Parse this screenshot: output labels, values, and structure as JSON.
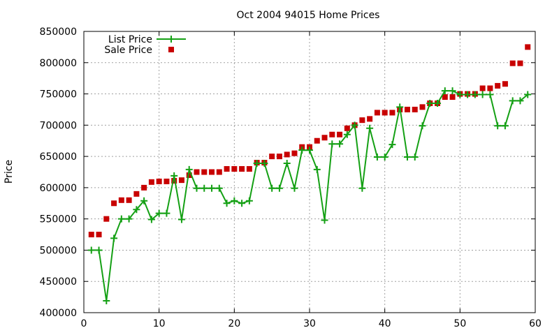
{
  "chart_data": {
    "type": "line",
    "title": "Oct 2004 94015 Home Prices",
    "xlabel": "",
    "ylabel": "Price",
    "xlim": [
      0,
      60
    ],
    "ylim": [
      400000,
      850000
    ],
    "x_ticks": [
      0,
      10,
      20,
      30,
      40,
      50,
      60
    ],
    "y_ticks": [
      400000,
      450000,
      500000,
      550000,
      600000,
      650000,
      700000,
      750000,
      800000,
      850000
    ],
    "x_tick_labels": [
      "0",
      "10",
      "20",
      "30",
      "40",
      "50",
      "60"
    ],
    "y_tick_labels": [
      "400000",
      "450000",
      "500000",
      "550000",
      "600000",
      "650000",
      "700000",
      "750000",
      "800000",
      "850000"
    ],
    "grid": true,
    "legend_position": "top-left",
    "series": [
      {
        "name": "List Price",
        "style": "line-plus",
        "color": "#14a014",
        "x": [
          1,
          2,
          3,
          4,
          5,
          6,
          7,
          8,
          9,
          10,
          11,
          12,
          13,
          14,
          15,
          16,
          17,
          18,
          19,
          20,
          21,
          22,
          23,
          24,
          25,
          26,
          27,
          28,
          29,
          30,
          31,
          32,
          33,
          34,
          35,
          36,
          37,
          38,
          39,
          40,
          41,
          42,
          43,
          44,
          45,
          46,
          47,
          48,
          49,
          50,
          51,
          52,
          53,
          54,
          55,
          56,
          57,
          58,
          59
        ],
        "values": [
          500000,
          500000,
          419000,
          519000,
          550000,
          550000,
          565000,
          579000,
          549000,
          559000,
          559000,
          619000,
          549000,
          629000,
          599000,
          599000,
          599000,
          599000,
          575000,
          579000,
          575000,
          579000,
          639000,
          639000,
          599000,
          599000,
          639000,
          599000,
          660000,
          660000,
          629000,
          548000,
          670000,
          670000,
          685000,
          700000,
          599000,
          695000,
          649000,
          649000,
          669000,
          729000,
          649000,
          649000,
          699000,
          735000,
          735000,
          755000,
          755000,
          749000,
          749000,
          749000,
          749000,
          749000,
          699000,
          699000,
          739000,
          739000,
          749000
        ]
      },
      {
        "name": "Sale Price",
        "style": "squares",
        "color": "#c80000",
        "x": [
          1,
          2,
          3,
          4,
          5,
          6,
          7,
          8,
          9,
          10,
          11,
          12,
          13,
          14,
          15,
          16,
          17,
          18,
          19,
          20,
          21,
          22,
          23,
          24,
          25,
          26,
          27,
          28,
          29,
          30,
          31,
          32,
          33,
          34,
          35,
          36,
          37,
          38,
          39,
          40,
          41,
          42,
          43,
          44,
          45,
          46,
          47,
          48,
          49,
          50,
          51,
          52,
          53,
          54,
          55,
          56,
          57,
          58,
          59
        ],
        "values": [
          525000,
          525000,
          550000,
          575000,
          580000,
          580000,
          590000,
          600000,
          609000,
          610000,
          610000,
          611000,
          612000,
          620000,
          625000,
          625000,
          625000,
          625000,
          630000,
          630000,
          630000,
          630000,
          640000,
          640000,
          650000,
          650000,
          653000,
          655000,
          665000,
          665000,
          675000,
          680000,
          685000,
          685000,
          695000,
          700000,
          708000,
          710000,
          720000,
          720000,
          720000,
          725000,
          725000,
          725000,
          729000,
          735000,
          735000,
          745000,
          745000,
          750000,
          750000,
          750000,
          759000,
          759000,
          763000,
          766000,
          799000,
          799000,
          825000
        ]
      }
    ]
  }
}
